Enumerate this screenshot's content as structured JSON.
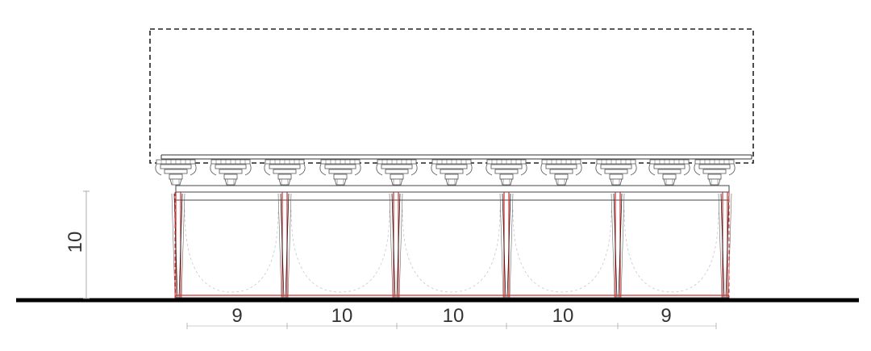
{
  "drawing": {
    "type": "architectural-elevation",
    "bay_count": 5,
    "bracket_count": 11,
    "colors": {
      "outline": "#000000",
      "thin_line": "#555555",
      "column_red": "#d23030",
      "faint_arc": "#c8c8c8",
      "ground": "#000000",
      "dimension": "#888888",
      "text": "#333333"
    },
    "dimensions": {
      "bay_widths": [
        "9",
        "10",
        "10",
        "10",
        "9"
      ],
      "column_height": "10"
    }
  }
}
